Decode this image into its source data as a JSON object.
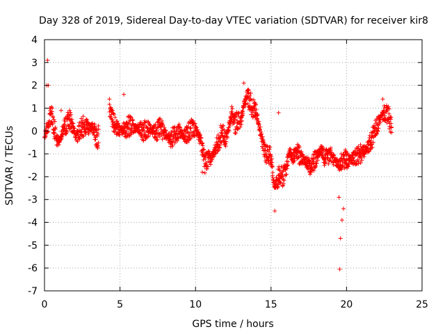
{
  "chart_data": {
    "type": "scatter",
    "title": "Day 328 of 2019, Sidereal Day-to-day VTEC variation (SDTVAR) for receiver kir8",
    "xlabel": "GPS time / hours",
    "ylabel": "SDTVAR / TECUs",
    "xlim": [
      0,
      25
    ],
    "ylim": [
      -7,
      4
    ],
    "xticks": [
      0,
      5,
      10,
      15,
      20,
      25
    ],
    "yticks": [
      4,
      3,
      2,
      1,
      0,
      -1,
      -2,
      -3,
      -4,
      -5,
      -6,
      -7
    ],
    "xtick_labels": [
      "0",
      "5",
      "10",
      "15",
      "20",
      "25"
    ],
    "ytick_labels": [
      "4",
      "3",
      "2",
      "1",
      "0",
      "-1",
      "-2",
      "-3",
      "-4",
      "-5",
      "-6",
      "-7"
    ],
    "grid": true,
    "marker": "+",
    "marker_color": "#ff0000",
    "trend": [
      [
        0.0,
        -0.3
      ],
      [
        0.15,
        0.1
      ],
      [
        0.3,
        0.5
      ],
      [
        0.45,
        0.8
      ],
      [
        0.6,
        0.3
      ],
      [
        0.75,
        -0.2
      ],
      [
        0.9,
        -0.5
      ],
      [
        1.1,
        -0.2
      ],
      [
        1.3,
        0.1
      ],
      [
        1.5,
        0.4
      ],
      [
        1.7,
        0.5
      ],
      [
        1.9,
        0.1
      ],
      [
        2.1,
        -0.3
      ],
      [
        2.3,
        0.0
      ],
      [
        2.5,
        0.2
      ],
      [
        2.7,
        0.2
      ],
      [
        2.9,
        0.1
      ],
      [
        3.2,
        0.2
      ],
      [
        3.4,
        -0.2
      ],
      [
        3.5,
        -0.4
      ],
      [
        3.6,
        0.0
      ],
      [
        4.3,
        1.0
      ],
      [
        4.45,
        0.6
      ],
      [
        4.6,
        0.3
      ],
      [
        4.8,
        0.2
      ],
      [
        5.0,
        0.0
      ],
      [
        5.3,
        0.1
      ],
      [
        5.6,
        0.2
      ],
      [
        5.9,
        0.2
      ],
      [
        6.2,
        0.1
      ],
      [
        6.5,
        0.0
      ],
      [
        6.8,
        0.1
      ],
      [
        7.1,
        0.0
      ],
      [
        7.4,
        0.0
      ],
      [
        7.7,
        0.1
      ],
      [
        8.0,
        -0.1
      ],
      [
        8.3,
        -0.4
      ],
      [
        8.6,
        -0.2
      ],
      [
        8.9,
        0.0
      ],
      [
        9.2,
        -0.2
      ],
      [
        9.5,
        -0.1
      ],
      [
        9.8,
        0.1
      ],
      [
        10.1,
        0.0
      ],
      [
        10.4,
        -0.6
      ],
      [
        10.6,
        -1.4
      ],
      [
        10.8,
        -1.3
      ],
      [
        11.0,
        -1.2
      ],
      [
        11.2,
        -1.0
      ],
      [
        11.4,
        -0.6
      ],
      [
        11.6,
        -0.3
      ],
      [
        11.8,
        0.0
      ],
      [
        12.0,
        -0.4
      ],
      [
        12.2,
        0.1
      ],
      [
        12.4,
        0.8
      ],
      [
        12.6,
        0.3
      ],
      [
        12.8,
        0.5
      ],
      [
        13.0,
        0.4
      ],
      [
        13.2,
        1.1
      ],
      [
        13.4,
        1.6
      ],
      [
        13.6,
        1.3
      ],
      [
        13.8,
        1.0
      ],
      [
        14.0,
        0.9
      ],
      [
        14.2,
        0.3
      ],
      [
        14.4,
        -0.5
      ],
      [
        14.6,
        -0.9
      ],
      [
        14.8,
        -1.0
      ],
      [
        15.0,
        -1.1
      ],
      [
        15.2,
        -2.4
      ],
      [
        15.4,
        -2.2
      ],
      [
        15.6,
        -1.8
      ],
      [
        15.8,
        -2.0
      ],
      [
        16.0,
        -1.7
      ],
      [
        16.2,
        -0.9
      ],
      [
        16.5,
        -1.1
      ],
      [
        16.8,
        -1.0
      ],
      [
        17.1,
        -1.2
      ],
      [
        17.4,
        -1.4
      ],
      [
        17.7,
        -1.5
      ],
      [
        18.0,
        -1.2
      ],
      [
        18.3,
        -0.8
      ],
      [
        18.6,
        -1.3
      ],
      [
        18.9,
        -1.0
      ],
      [
        19.2,
        -1.3
      ],
      [
        19.5,
        -1.5
      ],
      [
        19.8,
        -1.2
      ],
      [
        20.1,
        -1.3
      ],
      [
        20.4,
        -1.2
      ],
      [
        20.7,
        -1.1
      ],
      [
        21.0,
        -1.0
      ],
      [
        21.3,
        -0.8
      ],
      [
        21.6,
        -0.5
      ],
      [
        21.9,
        0.0
      ],
      [
        22.2,
        0.5
      ],
      [
        22.5,
        0.8
      ],
      [
        22.8,
        0.6
      ],
      [
        23.0,
        0.1
      ]
    ],
    "outliers": [
      [
        0.2,
        3.1
      ],
      [
        0.15,
        2.0
      ],
      [
        0.25,
        2.0
      ],
      [
        1.1,
        0.9
      ],
      [
        4.3,
        1.4
      ],
      [
        5.25,
        1.6
      ],
      [
        10.45,
        -1.8
      ],
      [
        13.2,
        2.1
      ],
      [
        15.25,
        -3.5
      ],
      [
        15.5,
        0.8
      ],
      [
        19.6,
        -4.7
      ],
      [
        19.55,
        -6.05
      ],
      [
        19.7,
        -3.9
      ],
      [
        19.5,
        -2.9
      ],
      [
        19.8,
        -3.4
      ],
      [
        22.4,
        1.4
      ]
    ]
  }
}
